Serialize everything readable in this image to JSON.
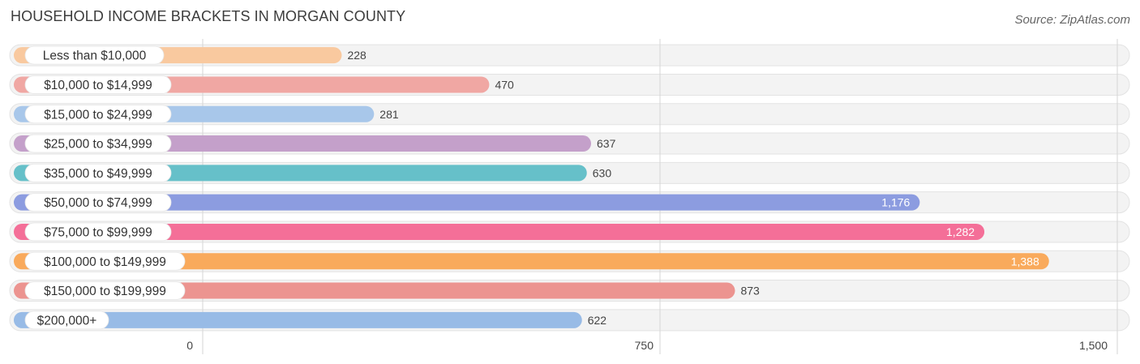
{
  "header": {
    "title": "HOUSEHOLD INCOME BRACKETS IN MORGAN COUNTY",
    "source": "Source: ZipAtlas.com"
  },
  "chart_data": {
    "type": "bar",
    "orientation": "horizontal",
    "title": "HOUSEHOLD INCOME BRACKETS IN MORGAN COUNTY",
    "categories": [
      "Less than $10,000",
      "$10,000 to $14,999",
      "$15,000 to $24,999",
      "$25,000 to $34,999",
      "$35,000 to $49,999",
      "$50,000 to $74,999",
      "$75,000 to $99,999",
      "$100,000 to $149,999",
      "$150,000 to $199,999",
      "$200,000+"
    ],
    "values": [
      228,
      470,
      281,
      637,
      630,
      1176,
      1282,
      1388,
      873,
      622
    ],
    "value_labels": [
      "228",
      "470",
      "281",
      "637",
      "630",
      "1,176",
      "1,282",
      "1,388",
      "873",
      "622"
    ],
    "colors": [
      "#f9c99f",
      "#f0a7a3",
      "#a8c7ea",
      "#c4a0ca",
      "#66c0c9",
      "#8c9ce0",
      "#f46f98",
      "#f9aa5c",
      "#ec9490",
      "#98bbe6"
    ],
    "xlim": [
      0,
      1500
    ],
    "xticks": [
      0,
      750,
      1500
    ],
    "xtick_labels": [
      "0",
      "750",
      "1,500"
    ],
    "grid": true
  }
}
